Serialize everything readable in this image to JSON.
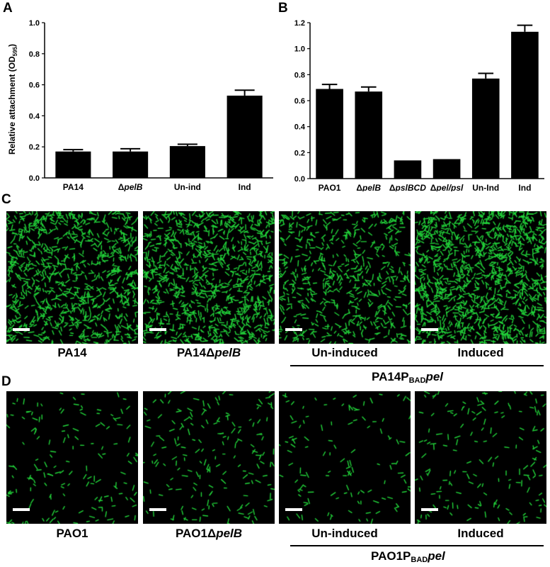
{
  "panel_labels": {
    "a": "A",
    "b": "B",
    "c": "C",
    "d": "D"
  },
  "chart_data": [
    {
      "type": "bar",
      "ylabel": "Relative attachment  (OD595)",
      "ylabel_main": "Relative attachment  (OD",
      "ylabel_sub": "595",
      "ylabel_close": ")",
      "ylim": [
        0,
        1.0
      ],
      "yticks": [
        "0.0",
        "0.2",
        "0.4",
        "0.6",
        "0.8",
        "1.0"
      ],
      "categories": [
        "PA14",
        "ΔpelB",
        "Un-ind",
        "Ind"
      ],
      "values": [
        0.17,
        0.17,
        0.205,
        0.53
      ],
      "errors": [
        0.012,
        0.018,
        0.012,
        0.035
      ],
      "group_label": "PBADpel",
      "group_label_main": "P",
      "group_label_sub": "BAD",
      "group_label_it": "pel",
      "bar_color": "#000000"
    },
    {
      "type": "bar",
      "ylim": [
        0,
        1.2
      ],
      "yticks": [
        "0.0",
        "0.2",
        "0.4",
        "0.6",
        "0.8",
        "1.0",
        "1.2"
      ],
      "categories": [
        "PAO1",
        "ΔpelB",
        "ΔpslBCD",
        "Δpel/psl",
        "Un-Ind",
        "Ind"
      ],
      "values": [
        0.69,
        0.67,
        0.14,
        0.15,
        0.77,
        1.13
      ],
      "errors": [
        0.035,
        0.035,
        0.0,
        0.0,
        0.04,
        0.05
      ],
      "group_label": "PBADpel",
      "group_label_main": "P",
      "group_label_sub": "BAD",
      "group_label_it": "pel",
      "bar_color": "#000000"
    }
  ],
  "panel_c": {
    "captions": [
      "PA14",
      "PA14ΔpelB",
      "Un-induced",
      "Induced"
    ],
    "cap2_main": "PA14Δ",
    "cap2_it": "pelB",
    "group_main": "PA14P",
    "group_sub": "BAD",
    "group_it": "pel",
    "densities": [
      900,
      1000,
      600,
      1200
    ]
  },
  "panel_d": {
    "captions": [
      "PAO1",
      "PAO1ΔpelB",
      "Un-induced",
      "Induced"
    ],
    "cap2_main": "PAO1Δ",
    "cap2_it": "pelB",
    "group_main": "PAO1P",
    "group_sub": "BAD",
    "group_it": "pel",
    "densities": [
      150,
      180,
      120,
      160
    ]
  },
  "colors": {
    "cell": "#22d43a",
    "background": "#000000",
    "scale_bar": "#ffffff"
  }
}
